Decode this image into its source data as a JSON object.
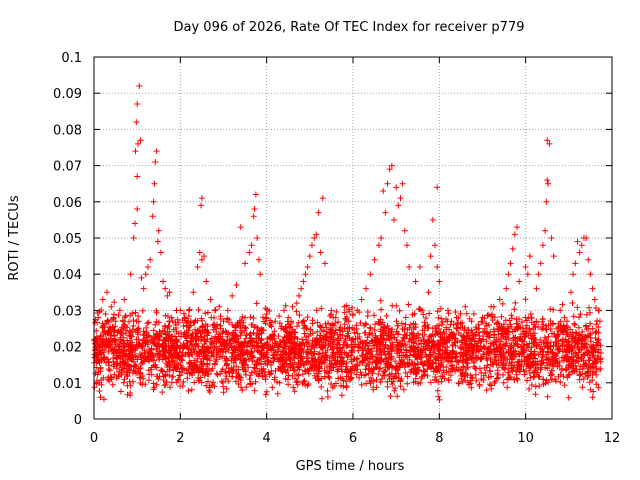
{
  "chart_data": {
    "type": "scatter",
    "title": "Day 096 of 2026, Rate Of TEC Index for receiver p779",
    "xlabel": "GPS time / hours",
    "ylabel": "ROTI / TECUs",
    "xlim": [
      0,
      12
    ],
    "ylim": [
      0,
      0.1
    ],
    "xticks": [
      0,
      2,
      4,
      6,
      8,
      10,
      12
    ],
    "xtick_labels": [
      "0",
      "2",
      "4",
      "6",
      "8",
      "10",
      "12"
    ],
    "yticks": [
      0,
      0.01,
      0.02,
      0.03,
      0.04,
      0.05,
      0.06,
      0.07,
      0.08,
      0.09,
      0.1
    ],
    "ytick_labels": [
      "0",
      "0.01",
      "0.02",
      "0.03",
      "0.04",
      "0.05",
      "0.06",
      "0.07",
      "0.08",
      "0.09",
      "0.1"
    ],
    "grid": true,
    "marker": "+",
    "color": "#ff0000",
    "x_data_extent": [
      0.0,
      11.75
    ],
    "bulk_band": [
      0.004,
      0.03
    ],
    "series": [
      {
        "name": "ROTI",
        "points": [
          [
            1.0,
            0.087
          ],
          [
            1.05,
            0.092
          ],
          [
            0.98,
            0.082
          ],
          [
            1.02,
            0.076
          ],
          [
            0.96,
            0.074
          ],
          [
            1.0,
            0.067
          ],
          [
            1.08,
            0.077
          ],
          [
            1.45,
            0.074
          ],
          [
            1.42,
            0.071
          ],
          [
            1.4,
            0.065
          ],
          [
            1.38,
            0.06
          ],
          [
            1.36,
            0.056
          ],
          [
            0.95,
            0.054
          ],
          [
            0.92,
            0.05
          ],
          [
            1.0,
            0.058
          ],
          [
            1.5,
            0.052
          ],
          [
            1.48,
            0.049
          ],
          [
            1.3,
            0.044
          ],
          [
            1.25,
            0.042
          ],
          [
            1.2,
            0.04
          ],
          [
            0.85,
            0.04
          ],
          [
            1.55,
            0.046
          ],
          [
            1.6,
            0.038
          ],
          [
            1.75,
            0.035
          ],
          [
            1.7,
            0.034
          ],
          [
            1.65,
            0.036
          ],
          [
            1.1,
            0.039
          ],
          [
            1.15,
            0.036
          ],
          [
            2.5,
            0.061
          ],
          [
            2.48,
            0.059
          ],
          [
            2.45,
            0.046
          ],
          [
            2.5,
            0.044
          ],
          [
            2.55,
            0.045
          ],
          [
            2.4,
            0.042
          ],
          [
            2.3,
            0.035
          ],
          [
            2.6,
            0.038
          ],
          [
            2.2,
            0.03
          ],
          [
            3.75,
            0.062
          ],
          [
            3.72,
            0.058
          ],
          [
            3.7,
            0.056
          ],
          [
            3.78,
            0.05
          ],
          [
            3.65,
            0.048
          ],
          [
            3.6,
            0.046
          ],
          [
            3.82,
            0.044
          ],
          [
            3.5,
            0.043
          ],
          [
            3.4,
            0.053
          ],
          [
            3.85,
            0.04
          ],
          [
            3.3,
            0.037
          ],
          [
            3.2,
            0.034
          ],
          [
            5.3,
            0.061
          ],
          [
            5.2,
            0.057
          ],
          [
            5.15,
            0.051
          ],
          [
            5.1,
            0.05
          ],
          [
            5.05,
            0.048
          ],
          [
            5.0,
            0.045
          ],
          [
            4.95,
            0.042
          ],
          [
            4.9,
            0.04
          ],
          [
            4.85,
            0.038
          ],
          [
            4.8,
            0.036
          ],
          [
            4.75,
            0.034
          ],
          [
            4.7,
            0.032
          ],
          [
            5.25,
            0.046
          ],
          [
            5.35,
            0.043
          ],
          [
            6.85,
            0.069
          ],
          [
            6.9,
            0.07
          ],
          [
            6.8,
            0.065
          ],
          [
            6.7,
            0.063
          ],
          [
            6.75,
            0.057
          ],
          [
            7.0,
            0.064
          ],
          [
            7.1,
            0.061
          ],
          [
            7.05,
            0.059
          ],
          [
            7.15,
            0.065
          ],
          [
            6.95,
            0.055
          ],
          [
            6.65,
            0.05
          ],
          [
            6.6,
            0.048
          ],
          [
            6.5,
            0.044
          ],
          [
            7.2,
            0.052
          ],
          [
            7.25,
            0.048
          ],
          [
            6.4,
            0.04
          ],
          [
            7.3,
            0.042
          ],
          [
            7.45,
            0.038
          ],
          [
            7.55,
            0.042
          ],
          [
            6.3,
            0.036
          ],
          [
            6.2,
            0.033
          ],
          [
            7.95,
            0.064
          ],
          [
            7.85,
            0.055
          ],
          [
            7.9,
            0.048
          ],
          [
            7.8,
            0.045
          ],
          [
            7.95,
            0.042
          ],
          [
            8.0,
            0.038
          ],
          [
            7.75,
            0.035
          ],
          [
            10.5,
            0.077
          ],
          [
            10.55,
            0.076
          ],
          [
            10.5,
            0.066
          ],
          [
            10.52,
            0.065
          ],
          [
            10.48,
            0.06
          ],
          [
            10.45,
            0.052
          ],
          [
            10.4,
            0.048
          ],
          [
            10.35,
            0.043
          ],
          [
            10.3,
            0.04
          ],
          [
            10.6,
            0.05
          ],
          [
            10.65,
            0.045
          ],
          [
            10.25,
            0.036
          ],
          [
            9.8,
            0.053
          ],
          [
            9.75,
            0.051
          ],
          [
            9.7,
            0.047
          ],
          [
            9.65,
            0.043
          ],
          [
            9.6,
            0.04
          ],
          [
            9.85,
            0.038
          ],
          [
            10.0,
            0.042
          ],
          [
            10.05,
            0.04
          ],
          [
            10.1,
            0.045
          ],
          [
            9.55,
            0.036
          ],
          [
            9.4,
            0.033
          ],
          [
            11.4,
            0.05
          ],
          [
            11.35,
            0.05
          ],
          [
            11.3,
            0.048
          ],
          [
            11.25,
            0.046
          ],
          [
            11.2,
            0.049
          ],
          [
            11.15,
            0.043
          ],
          [
            11.45,
            0.044
          ],
          [
            11.5,
            0.04
          ],
          [
            11.1,
            0.04
          ],
          [
            11.55,
            0.036
          ],
          [
            11.6,
            0.033
          ],
          [
            11.05,
            0.035
          ],
          [
            0.1,
            0.028
          ],
          [
            0.2,
            0.033
          ],
          [
            0.3,
            0.035
          ],
          [
            0.4,
            0.031
          ],
          [
            0.5,
            0.027
          ],
          [
            0.6,
            0.03
          ],
          [
            0.7,
            0.033
          ],
          [
            1.8,
            0.028
          ],
          [
            1.9,
            0.026
          ],
          [
            2.0,
            0.03
          ],
          [
            2.1,
            0.028
          ],
          [
            2.7,
            0.033
          ],
          [
            2.8,
            0.03
          ],
          [
            2.9,
            0.031
          ],
          [
            3.0,
            0.027
          ],
          [
            3.1,
            0.03
          ],
          [
            4.0,
            0.029
          ],
          [
            4.2,
            0.027
          ],
          [
            4.4,
            0.03
          ],
          [
            4.5,
            0.028
          ],
          [
            4.6,
            0.031
          ],
          [
            5.5,
            0.03
          ],
          [
            5.6,
            0.028
          ],
          [
            5.8,
            0.031
          ],
          [
            5.9,
            0.027
          ],
          [
            6.0,
            0.029
          ],
          [
            6.1,
            0.03
          ],
          [
            7.6,
            0.03
          ],
          [
            8.2,
            0.03
          ],
          [
            8.4,
            0.028
          ],
          [
            8.6,
            0.031
          ],
          [
            8.8,
            0.029
          ],
          [
            9.0,
            0.028
          ],
          [
            9.2,
            0.031
          ],
          [
            10.8,
            0.03
          ],
          [
            10.9,
            0.028
          ],
          [
            11.7,
            0.03
          ],
          [
            11.72,
            0.027
          ],
          [
            0.05,
            0.022
          ],
          [
            0.08,
            0.016
          ],
          [
            0.12,
            0.01
          ],
          [
            0.15,
            0.006
          ],
          [
            0.02,
            0.019
          ],
          [
            0.1,
            0.013
          ]
        ]
      }
    ]
  }
}
